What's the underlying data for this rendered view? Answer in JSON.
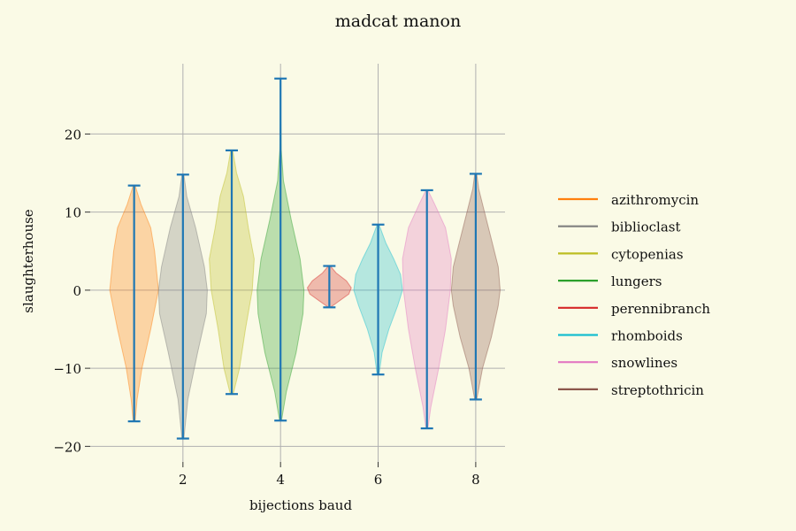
{
  "chart_data": {
    "type": "violin",
    "title": "madcat manon",
    "xlabel": "bijections baud",
    "ylabel": "slaughterhouse",
    "xlim": [
      0.1,
      8.6
    ],
    "ylim": [
      -22,
      29
    ],
    "xticks": [
      2,
      4,
      6,
      8
    ],
    "xtick_labels": [
      "2",
      "4",
      "6",
      "8"
    ],
    "yticks": [
      -20,
      -10,
      0,
      10,
      20
    ],
    "ytick_labels": [
      "−20",
      "−10",
      "0",
      "10",
      "20"
    ],
    "grid": true,
    "legend_position": "right",
    "whisker_color": "#1f77b4",
    "series": [
      {
        "name": "azithromycin",
        "x": 1,
        "min": -16.8,
        "max": 13.4,
        "color": "#ff7f0e",
        "profile": [
          [
            -16.8,
            0.02
          ],
          [
            -14,
            0.06
          ],
          [
            -10,
            0.16
          ],
          [
            -5,
            0.34
          ],
          [
            0,
            0.5
          ],
          [
            5,
            0.42
          ],
          [
            8,
            0.34
          ],
          [
            11,
            0.14
          ],
          [
            13.4,
            0.02
          ]
        ]
      },
      {
        "name": "biblioclast",
        "x": 2,
        "min": -19.0,
        "max": 14.8,
        "color": "#7f7f7f",
        "profile": [
          [
            -19,
            0.02
          ],
          [
            -14,
            0.1
          ],
          [
            -8,
            0.3
          ],
          [
            -3,
            0.48
          ],
          [
            0,
            0.5
          ],
          [
            3,
            0.44
          ],
          [
            8,
            0.26
          ],
          [
            12,
            0.08
          ],
          [
            14.8,
            0.02
          ]
        ]
      },
      {
        "name": "cytopenias",
        "x": 3,
        "min": -13.3,
        "max": 17.9,
        "color": "#bcbd22",
        "profile": [
          [
            -13.3,
            0.03
          ],
          [
            -10,
            0.16
          ],
          [
            -5,
            0.28
          ],
          [
            0,
            0.42
          ],
          [
            4,
            0.46
          ],
          [
            8,
            0.34
          ],
          [
            12,
            0.24
          ],
          [
            15,
            0.1
          ],
          [
            17.9,
            0.02
          ]
        ]
      },
      {
        "name": "lungers",
        "x": 4,
        "min": -16.7,
        "max": 27.1,
        "color": "#2ca02c",
        "profile": [
          [
            -16.7,
            0.02
          ],
          [
            -13,
            0.12
          ],
          [
            -8,
            0.32
          ],
          [
            -3,
            0.46
          ],
          [
            0,
            0.48
          ],
          [
            4,
            0.4
          ],
          [
            9,
            0.22
          ],
          [
            14,
            0.06
          ],
          [
            18,
            0.015
          ],
          [
            22,
            0.005
          ],
          [
            27.1,
            0.002
          ]
        ]
      },
      {
        "name": "perennibranch",
        "x": 5,
        "min": -2.2,
        "max": 3.1,
        "color": "#d62728",
        "profile": [
          [
            -2.2,
            0.02
          ],
          [
            -1.4,
            0.2
          ],
          [
            -0.5,
            0.4
          ],
          [
            0.3,
            0.45
          ],
          [
            1.2,
            0.35
          ],
          [
            2.2,
            0.14
          ],
          [
            3.1,
            0.02
          ]
        ]
      },
      {
        "name": "rhomboids",
        "x": 6,
        "min": -10.8,
        "max": 8.4,
        "color": "#17becf",
        "profile": [
          [
            -10.8,
            0.02
          ],
          [
            -8,
            0.08
          ],
          [
            -5,
            0.22
          ],
          [
            -2,
            0.4
          ],
          [
            0,
            0.5
          ],
          [
            2,
            0.46
          ],
          [
            4,
            0.32
          ],
          [
            6,
            0.16
          ],
          [
            8.4,
            0.02
          ]
        ]
      },
      {
        "name": "snowlines",
        "x": 7,
        "min": -17.7,
        "max": 12.8,
        "color": "#e377c2",
        "profile": [
          [
            -17.7,
            0.02
          ],
          [
            -15,
            0.08
          ],
          [
            -10,
            0.24
          ],
          [
            -5,
            0.38
          ],
          [
            0,
            0.48
          ],
          [
            4,
            0.5
          ],
          [
            8,
            0.38
          ],
          [
            11,
            0.16
          ],
          [
            12.8,
            0.02
          ]
        ]
      },
      {
        "name": "streptothricin",
        "x": 8,
        "min": -14.0,
        "max": 14.9,
        "color": "#8c564b",
        "profile": [
          [
            -14,
            0.02
          ],
          [
            -10,
            0.14
          ],
          [
            -6,
            0.32
          ],
          [
            -2,
            0.46
          ],
          [
            0,
            0.5
          ],
          [
            3,
            0.46
          ],
          [
            6,
            0.34
          ],
          [
            10,
            0.18
          ],
          [
            13,
            0.06
          ],
          [
            14.9,
            0.02
          ]
        ]
      }
    ]
  }
}
